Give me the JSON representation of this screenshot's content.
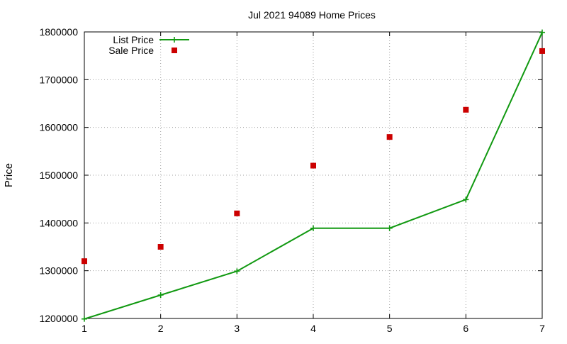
{
  "chart_data": {
    "type": "line",
    "title": "Jul 2021 94089 Home Prices",
    "xlabel": "",
    "ylabel": "Price",
    "x": [
      1,
      2,
      3,
      4,
      5,
      6,
      7
    ],
    "xlim": [
      1,
      7
    ],
    "ylim": [
      1200000,
      1800000
    ],
    "x_ticks": [
      "1",
      "2",
      "3",
      "4",
      "5",
      "6",
      "7"
    ],
    "y_ticks": [
      "1200000",
      "1300000",
      "1400000",
      "1500000",
      "1600000",
      "1700000",
      "1800000"
    ],
    "grid": true,
    "legend_position": "top-left",
    "series": [
      {
        "name": "List Price",
        "style": "line-with-plus-markers",
        "color": "#119911",
        "values": [
          1199000,
          1249000,
          1299000,
          1389000,
          1389000,
          1449000,
          1799000
        ]
      },
      {
        "name": "Sale Price",
        "style": "square-markers",
        "color": "#cc0000",
        "values": [
          1320000,
          1350000,
          1420000,
          1520000,
          1580000,
          1637000,
          1760000
        ]
      }
    ]
  }
}
